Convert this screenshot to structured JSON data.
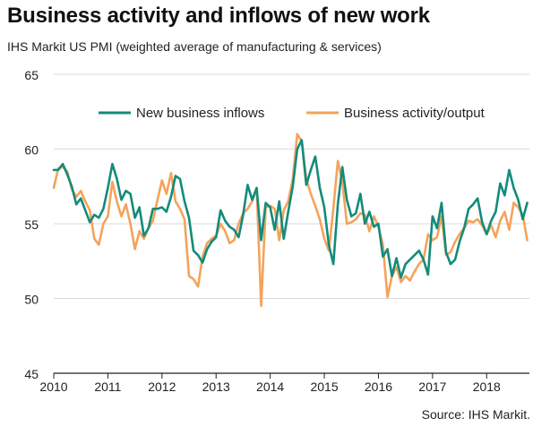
{
  "header": {
    "title": "Business activity and inflows of new work",
    "subtitle": "IHS Markit US PMI (weighted average of manufacturing & services)"
  },
  "footer": {
    "source": "Source: IHS Markit."
  },
  "colors": {
    "new_business": "#138b7b",
    "activity": "#f4a35a",
    "grid": "#d9d9d9",
    "axis": "#222222"
  },
  "chart_data": {
    "type": "line",
    "title": "Business activity and inflows of new work",
    "ylim": [
      45,
      65
    ],
    "yticks": [
      45,
      50,
      55,
      60,
      65
    ],
    "xlim": [
      2010,
      2018.79
    ],
    "xticks": [
      2010,
      2011,
      2012,
      2013,
      2014,
      2015,
      2016,
      2017,
      2018
    ],
    "grid": true,
    "legend_position": "top",
    "series": [
      {
        "name": "New business inflows",
        "x": [
          2010.0,
          2010.083,
          2010.167,
          2010.25,
          2010.333,
          2010.417,
          2010.5,
          2010.583,
          2010.667,
          2010.75,
          2010.833,
          2010.917,
          2011.0,
          2011.083,
          2011.167,
          2011.25,
          2011.333,
          2011.417,
          2011.5,
          2011.583,
          2011.667,
          2011.75,
          2011.833,
          2011.917,
          2012.0,
          2012.083,
          2012.167,
          2012.25,
          2012.333,
          2012.417,
          2012.5,
          2012.583,
          2012.667,
          2012.75,
          2012.833,
          2012.917,
          2013.0,
          2013.083,
          2013.167,
          2013.25,
          2013.333,
          2013.417,
          2013.5,
          2013.583,
          2013.667,
          2013.75,
          2013.833,
          2013.917,
          2014.0,
          2014.083,
          2014.167,
          2014.25,
          2014.333,
          2014.417,
          2014.5,
          2014.583,
          2014.667,
          2014.75,
          2014.833,
          2014.917,
          2015.0,
          2015.083,
          2015.167,
          2015.25,
          2015.333,
          2015.417,
          2015.5,
          2015.583,
          2015.667,
          2015.75,
          2015.833,
          2015.917,
          2016.0,
          2016.083,
          2016.167,
          2016.25,
          2016.333,
          2016.417,
          2016.5,
          2016.583,
          2016.667,
          2016.75,
          2016.833,
          2016.917,
          2017.0,
          2017.083,
          2017.167,
          2017.25,
          2017.333,
          2017.417,
          2017.5,
          2017.583,
          2017.667,
          2017.75,
          2017.833,
          2017.917,
          2018.0,
          2018.083,
          2018.167,
          2018.25,
          2018.333,
          2018.417,
          2018.5,
          2018.583,
          2018.667,
          2018.75
        ],
        "values": [
          58.6,
          58.6,
          59.0,
          58.3,
          57.5,
          56.3,
          56.7,
          55.9,
          55.1,
          55.6,
          55.4,
          56.0,
          57.4,
          59.0,
          58.0,
          56.6,
          57.2,
          57.0,
          55.4,
          56.1,
          54.2,
          54.7,
          56.0,
          56.0,
          56.1,
          55.8,
          56.8,
          58.2,
          58.0,
          56.5,
          55.4,
          53.2,
          52.9,
          52.4,
          53.3,
          53.8,
          54.1,
          55.9,
          55.2,
          54.8,
          54.6,
          54.1,
          55.6,
          57.6,
          56.6,
          57.4,
          53.9,
          56.4,
          56.1,
          54.6,
          56.5,
          54.0,
          55.8,
          57.5,
          60.0,
          60.6,
          57.6,
          58.6,
          59.5,
          57.4,
          56.1,
          53.6,
          52.3,
          56.3,
          58.8,
          56.6,
          55.5,
          55.7,
          57.0,
          55.0,
          55.8,
          54.8,
          55.0,
          52.8,
          53.3,
          51.5,
          52.7,
          51.4,
          52.3,
          52.6,
          52.9,
          53.2,
          52.6,
          51.6,
          55.5,
          54.7,
          56.4,
          53.1,
          52.3,
          52.6,
          53.8,
          54.7,
          56.0,
          56.3,
          56.7,
          55.1,
          54.3,
          55.2,
          55.8,
          57.7,
          56.9,
          58.6,
          57.4,
          56.6,
          55.3,
          56.4
        ]
      },
      {
        "name": "Business activity/output",
        "x": [
          2010.0,
          2010.083,
          2010.167,
          2010.25,
          2010.333,
          2010.417,
          2010.5,
          2010.583,
          2010.667,
          2010.75,
          2010.833,
          2010.917,
          2011.0,
          2011.083,
          2011.167,
          2011.25,
          2011.333,
          2011.417,
          2011.5,
          2011.583,
          2011.667,
          2011.75,
          2011.833,
          2011.917,
          2012.0,
          2012.083,
          2012.167,
          2012.25,
          2012.333,
          2012.417,
          2012.5,
          2012.583,
          2012.667,
          2012.75,
          2012.833,
          2012.917,
          2013.0,
          2013.083,
          2013.167,
          2013.25,
          2013.333,
          2013.417,
          2013.5,
          2013.583,
          2013.667,
          2013.75,
          2013.833,
          2013.917,
          2014.0,
          2014.083,
          2014.167,
          2014.25,
          2014.333,
          2014.417,
          2014.5,
          2014.583,
          2014.667,
          2014.75,
          2014.833,
          2014.917,
          2015.0,
          2015.083,
          2015.167,
          2015.25,
          2015.333,
          2015.417,
          2015.5,
          2015.583,
          2015.667,
          2015.75,
          2015.833,
          2015.917,
          2016.0,
          2016.083,
          2016.167,
          2016.25,
          2016.333,
          2016.417,
          2016.5,
          2016.583,
          2016.667,
          2016.75,
          2016.833,
          2016.917,
          2017.0,
          2017.083,
          2017.167,
          2017.25,
          2017.333,
          2017.417,
          2017.5,
          2017.583,
          2017.667,
          2017.75,
          2017.833,
          2017.917,
          2018.0,
          2018.083,
          2018.167,
          2018.25,
          2018.333,
          2018.417,
          2018.5,
          2018.583,
          2018.667,
          2018.75
        ],
        "values": [
          57.4,
          58.7,
          58.8,
          58.5,
          57.3,
          56.8,
          57.2,
          56.5,
          55.9,
          54.0,
          53.6,
          55.0,
          55.5,
          57.8,
          56.5,
          55.5,
          56.3,
          55.0,
          53.3,
          54.5,
          54.0,
          54.7,
          55.2,
          56.6,
          57.9,
          57.0,
          58.4,
          56.5,
          56.0,
          55.3,
          51.5,
          51.3,
          50.8,
          52.8,
          53.7,
          54.0,
          54.2,
          55.0,
          54.5,
          53.7,
          53.9,
          55.0,
          55.7,
          56.0,
          56.5,
          57.4,
          49.5,
          56.1,
          56.2,
          56.0,
          53.9,
          55.9,
          56.5,
          58.0,
          61.0,
          60.5,
          58.0,
          57.0,
          56.2,
          55.3,
          54.0,
          53.2,
          56.0,
          59.2,
          57.8,
          55.0,
          55.1,
          55.3,
          55.7,
          55.6,
          54.5,
          55.5,
          54.8,
          53.6,
          50.1,
          51.5,
          52.1,
          51.1,
          51.5,
          51.2,
          51.8,
          52.3,
          52.6,
          54.3,
          53.9,
          54.1,
          55.5,
          52.9,
          53.1,
          53.8,
          54.3,
          54.7,
          55.2,
          55.1,
          55.3,
          54.9,
          54.3,
          54.9,
          54.1,
          55.2,
          55.8,
          54.6,
          56.4,
          56.1,
          55.6,
          53.9
        ]
      }
    ]
  }
}
